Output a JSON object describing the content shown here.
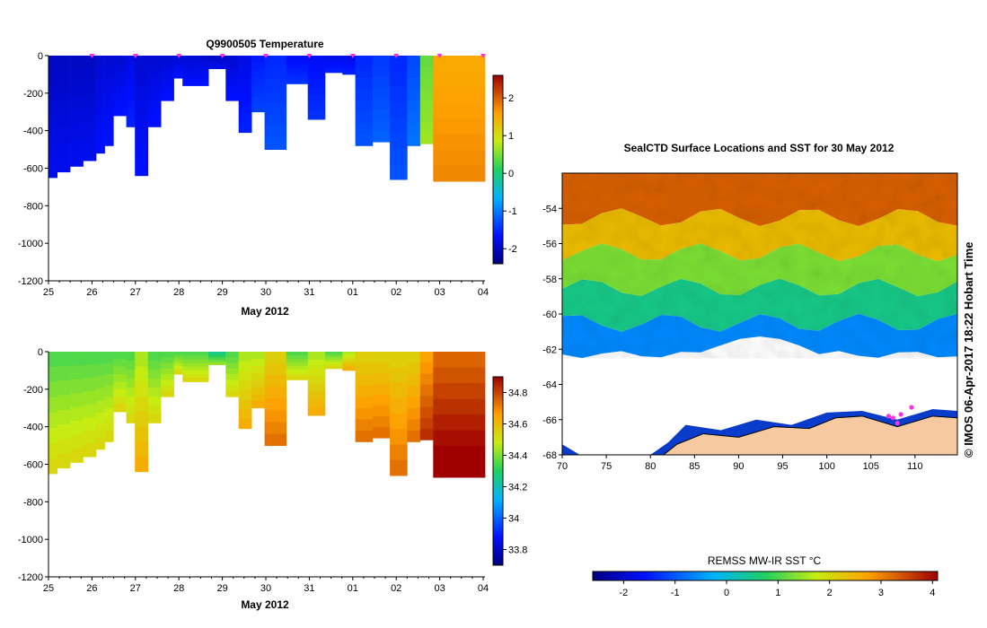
{
  "chart_data": [
    {
      "type": "heatmap",
      "title": "Q9900505  Temperature",
      "xlabel": "May 2012",
      "x_ticks": [
        "25",
        "26",
        "27",
        "28",
        "29",
        "30",
        "31",
        "01",
        "02",
        "03",
        "04"
      ],
      "y_ticks": [
        0,
        -200,
        -400,
        -600,
        -800,
        -1000,
        -1200
      ],
      "ylim": [
        -1200,
        0
      ],
      "colorbar_ticks": [
        2,
        1,
        0,
        -1,
        -2
      ],
      "colorbar_range": [
        -2.4,
        2.6
      ],
      "profiles": [
        {
          "day": 25.0,
          "depth": -650,
          "value": -2.0
        },
        {
          "day": 25.2,
          "depth": -620,
          "value": -2.0
        },
        {
          "day": 25.5,
          "depth": -590,
          "value": -2.0
        },
        {
          "day": 25.8,
          "depth": -560,
          "value": -2.0
        },
        {
          "day": 26.1,
          "depth": -520,
          "value": -1.9
        },
        {
          "day": 26.3,
          "depth": -480,
          "value": -1.9
        },
        {
          "day": 26.5,
          "depth": -320,
          "value": -1.9
        },
        {
          "day": 26.8,
          "depth": -380,
          "value": -1.8
        },
        {
          "day": 27.0,
          "depth": -640,
          "value": -1.9
        },
        {
          "day": 27.3,
          "depth": -380,
          "value": -1.9
        },
        {
          "day": 27.6,
          "depth": -240,
          "value": -1.9
        },
        {
          "day": 27.9,
          "depth": -120,
          "value": -1.9
        },
        {
          "day": 28.1,
          "depth": -160,
          "value": -1.9
        },
        {
          "day": 28.7,
          "depth": -70,
          "value": -2.0
        },
        {
          "day": 29.1,
          "depth": -240,
          "value": -1.9
        },
        {
          "day": 29.4,
          "depth": -410,
          "value": -1.8
        },
        {
          "day": 29.7,
          "depth": -300,
          "value": -1.6
        },
        {
          "day": 30.0,
          "depth": -500,
          "value": -1.5
        },
        {
          "day": 30.5,
          "depth": -150,
          "value": -1.7
        },
        {
          "day": 31.0,
          "depth": -340,
          "value": -1.7
        },
        {
          "day": 31.4,
          "depth": -90,
          "value": -1.8
        },
        {
          "day": 31.8,
          "depth": -100,
          "value": -1.8
        },
        {
          "day": 32.1,
          "depth": -480,
          "value": -1.5
        },
        {
          "day": 32.5,
          "depth": -460,
          "value": -1.4
        },
        {
          "day": 32.9,
          "depth": -660,
          "value": -1.5
        },
        {
          "day": 33.3,
          "depth": -480,
          "value": -1.3
        },
        {
          "day": 33.6,
          "depth": -470,
          "value": 0.4
        },
        {
          "day": 33.9,
          "depth": -670,
          "value": 1.5
        }
      ]
    },
    {
      "type": "heatmap",
      "title": "",
      "xlabel": "May 2012",
      "x_ticks": [
        "25",
        "26",
        "27",
        "28",
        "29",
        "30",
        "31",
        "01",
        "02",
        "03",
        "04"
      ],
      "y_ticks": [
        0,
        -200,
        -400,
        -600,
        -800,
        -1000,
        -1200
      ],
      "ylim": [
        -1200,
        0
      ],
      "colorbar_ticks": [
        34.8,
        34.6,
        34.4,
        34.2,
        34,
        33.8
      ],
      "colorbar_range": [
        33.7,
        34.9
      ],
      "profiles": [
        {
          "day": 25.0,
          "depth": -650,
          "value": 34.4
        },
        {
          "day": 25.2,
          "depth": -620,
          "value": 34.4
        },
        {
          "day": 25.5,
          "depth": -590,
          "value": 34.4
        },
        {
          "day": 25.8,
          "depth": -560,
          "value": 34.4
        },
        {
          "day": 26.1,
          "depth": -520,
          "value": 34.4
        },
        {
          "day": 26.3,
          "depth": -480,
          "value": 34.4
        },
        {
          "day": 26.5,
          "depth": -320,
          "value": 34.4
        },
        {
          "day": 26.8,
          "depth": -380,
          "value": 34.4
        },
        {
          "day": 27.0,
          "depth": -640,
          "value": 34.5
        },
        {
          "day": 27.3,
          "depth": -380,
          "value": 34.4
        },
        {
          "day": 27.6,
          "depth": -240,
          "value": 34.4
        },
        {
          "day": 27.9,
          "depth": -120,
          "value": 34.4
        },
        {
          "day": 28.1,
          "depth": -160,
          "value": 34.4
        },
        {
          "day": 28.7,
          "depth": -70,
          "value": 34.3
        },
        {
          "day": 29.1,
          "depth": -240,
          "value": 34.4
        },
        {
          "day": 29.4,
          "depth": -410,
          "value": 34.5
        },
        {
          "day": 29.7,
          "depth": -300,
          "value": 34.5
        },
        {
          "day": 30.0,
          "depth": -500,
          "value": 34.6
        },
        {
          "day": 30.5,
          "depth": -150,
          "value": 34.4
        },
        {
          "day": 31.0,
          "depth": -340,
          "value": 34.5
        },
        {
          "day": 31.4,
          "depth": -90,
          "value": 34.4
        },
        {
          "day": 31.8,
          "depth": -100,
          "value": 34.5
        },
        {
          "day": 32.1,
          "depth": -480,
          "value": 34.6
        },
        {
          "day": 32.5,
          "depth": -460,
          "value": 34.6
        },
        {
          "day": 32.9,
          "depth": -660,
          "value": 34.6
        },
        {
          "day": 33.3,
          "depth": -480,
          "value": 34.6
        },
        {
          "day": 33.6,
          "depth": -470,
          "value": 34.7
        },
        {
          "day": 33.9,
          "depth": -670,
          "value": 34.8
        }
      ]
    },
    {
      "type": "heatmap",
      "title": "SealCTD Surface Locations and SST for 30 May 2012",
      "x_ticks": [
        70,
        75,
        80,
        85,
        90,
        95,
        100,
        105,
        110
      ],
      "y_ticks": [
        -54,
        -56,
        -58,
        -60,
        -62,
        -64,
        -66,
        -68
      ],
      "xlim": [
        70,
        114.8
      ],
      "ylim": [
        -68,
        -52
      ],
      "colorbar_label": "REMSS MW-IR SST °C",
      "colorbar_ticks": [
        -2,
        -1,
        0,
        1,
        2,
        3,
        4
      ],
      "colorbar_range": [
        -2.6,
        4.1
      ],
      "sst_bands": [
        {
          "lat_from": -52,
          "lat_to": -54.5,
          "value": 3.3
        },
        {
          "lat_from": -54.5,
          "lat_to": -56.5,
          "value": 2.4
        },
        {
          "lat_from": -56.5,
          "lat_to": -58.5,
          "value": 1.3
        },
        {
          "lat_from": -58.5,
          "lat_to": -60.5,
          "value": 0.5
        },
        {
          "lat_from": -60.5,
          "lat_to": -62.3,
          "value": -0.6
        }
      ],
      "seal_locations": [
        {
          "lon": 107.0,
          "lat": -65.8
        },
        {
          "lon": 107.5,
          "lat": -65.9
        },
        {
          "lon": 108.0,
          "lat": -66.2
        },
        {
          "lon": 108.4,
          "lat": -65.7
        },
        {
          "lon": 109.6,
          "lat": -65.3
        }
      ]
    }
  ],
  "copyright": "© IMOS 06-Apr-2017 18:22 Hobart Time",
  "colors": {
    "land": "#f6c9a0",
    "seal_marker": "#ff30e0"
  }
}
